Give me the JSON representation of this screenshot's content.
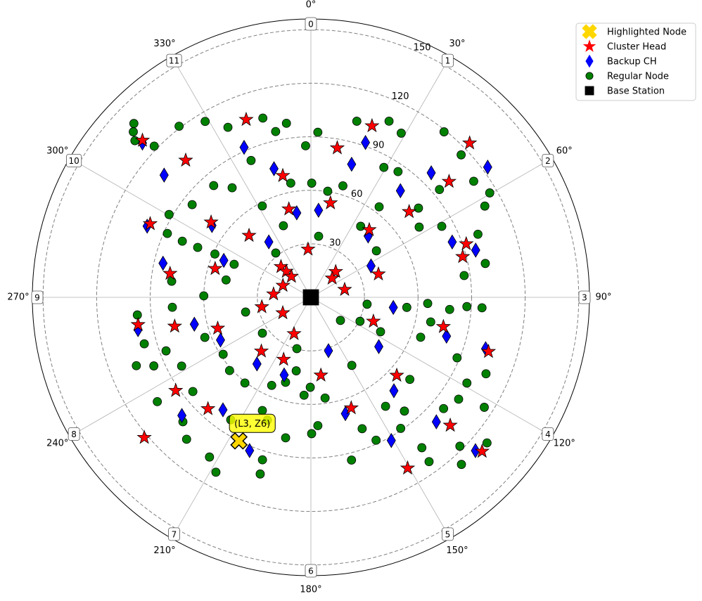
{
  "chart_data": {
    "type": "polar-scatter",
    "theta_direction": "clockwise",
    "theta_zero": "top",
    "rlim": [
      0,
      156
    ],
    "rticks": [
      30,
      60,
      90,
      120,
      150
    ],
    "thetaticks": [
      {
        "value": 0,
        "label": "0°"
      },
      {
        "value": 30,
        "label": "30°"
      },
      {
        "value": 60,
        "label": "60°"
      },
      {
        "value": 90,
        "label": "90°"
      },
      {
        "value": 120,
        "label": "120°"
      },
      {
        "value": 150,
        "label": "150°"
      },
      {
        "value": 180,
        "label": "180°"
      },
      {
        "value": 210,
        "label": "210°"
      },
      {
        "value": 240,
        "label": "240°"
      },
      {
        "value": 270,
        "label": "270°"
      },
      {
        "value": 300,
        "label": "300°"
      },
      {
        "value": 330,
        "label": "330°"
      }
    ],
    "sector_labels": [
      "0",
      "1",
      "2",
      "3",
      "4",
      "5",
      "6",
      "7",
      "8",
      "9",
      "10",
      "11"
    ],
    "grid": true,
    "legend": "upper right",
    "annotation": "(L3, Z6)",
    "series": [
      {
        "name": "Highlighted Node",
        "color": "#ffd700",
        "marker": "X",
        "theta": [
          206.6
        ],
        "r": [
          90
        ]
      },
      {
        "name": "Cluster Head",
        "color": "#ff0000",
        "marker": "*",
        "theta": [
          340,
          19.6,
          10,
          45.8,
          313,
          317.6,
          347,
          50,
          11.7,
          346,
          48.9,
          307,
          294.6,
          40.8,
          315,
          71,
          356.6,
          75,
          286.7,
          315.7,
          316.6,
          44,
          71,
          279.6,
          317,
          48,
          293,
          77,
          275,
          259,
          241,
          111,
          261,
          258,
          251.6,
          102.5,
          204.8,
          222.6,
          107,
          203.7,
          132.3,
          172.7,
          235.4,
          222.7,
          160,
          132.6,
          229.9,
          132,
          150.5
        ],
        "r": [
          106,
          102,
          85,
          124,
          129,
          104,
          70,
          101,
          54,
          51,
          73,
          70,
          99,
          50,
          49,
          92,
          27,
          88,
          56,
          24,
          20,
          20,
          40,
          80,
          16,
          16,
          17,
          19.4,
          21,
          28,
          18,
          37.5,
          98,
          78,
          55,
          76,
          22.5,
          41,
          104,
          38,
          65,
          44,
          92,
          85,
          66,
          106,
          122,
          129,
          110
        ]
      },
      {
        "name": "Backup CH",
        "color": "#0000ff",
        "marker": "d",
        "theta": [
          19.4,
          336,
          312.5,
          53.6,
          17,
          344,
          309.8,
          44,
          40,
          5,
          350.5,
          293.5,
          306,
          43,
          322.8,
          68.6,
          74,
          283,
          293,
          62.4,
          97,
          257,
          259.4,
          106,
          106.4,
          244.7,
          161.8,
          126,
          219,
          199,
          138.4,
          218,
          163.5,
          227.5,
          134.8,
          150.7,
          201.8,
          133
        ],
        "r": [
          92,
          92,
          128,
          123,
          78,
          75,
          107,
          97,
          78,
          49,
          48,
          100,
          68.5,
          47,
          39,
          85,
          96,
          85,
          53,
          38,
          46.5,
          67,
          98.5,
          79,
          102,
          56,
          31.5,
          47,
          48,
          46,
          70,
          80,
          68,
          98,
          99,
          92,
          92.5,
          126
        ]
      },
      {
        "name": "Regular Node",
        "color": "#008000",
        "marker": "o",
        "theta": [
          314.5,
          311.7,
          314,
          322.4,
          329,
          334,
          345,
          352,
          348,
          358,
          2.4,
          14.6,
          23.9,
          28.8,
          38.8,
          46.5,
          54.5,
          59.7,
          62.3,
          69.3,
          79,
          81.9,
          93.5,
          93.4,
          95,
          93,
          96,
          101.6,
          110,
          112.5,
          113.6,
          118.8,
          124.6,
          122.4,
          129.6,
          135,
          138,
          144.3,
          143.6,
          145.6,
          140.6,
          155.5,
          166,
          158.7,
          176.9,
          179.7,
          172,
          184,
          191.3,
          195.3,
          196.6,
          203.2,
          217.6,
          228,
          237,
          249.3,
          249.7,
          246.4,
          242,
          231.4,
          235.8,
          221.2,
          212.4,
          208.5,
          196,
          196.6,
          190.2,
          199.5,
          213.2,
          233.5,
          257.3,
          281.6,
          294.3,
          293.6,
          294,
          300.3,
          308,
          319,
          324.3,
          336.4,
          350,
          332,
          339,
          0.4,
          16,
          29.3,
          37,
          57,
          61.5,
          50,
          35,
          54.6,
          7.2,
          321.6,
          293.3,
          276.6,
          270.8,
          265.9,
          264.2,
          254.4,
          248.6,
          116.3,
          116,
          97,
          129.7,
          149,
          128,
          180.4,
          204,
          293.8,
          50.3,
          34.7,
          9,
          313,
          225.8,
          130,
          145.6
        ],
        "r": [
          139,
          132,
          122,
          121,
          115,
          106,
          104,
          98.5,
          95,
          85,
          92.6,
          102,
          108,
          105,
          119,
          116,
          112,
          116,
          110,
          100,
          99.5,
          86.7,
          96,
          87.5,
          78,
          65.5,
          54,
          68.5,
          65.4,
          88.6,
          107,
          99.7,
          100.5,
          115,
          128,
          118,
          126,
          113.4,
          104.7,
          89,
          82.5,
          88,
          94,
          79,
          72,
          76.4,
          57,
          55,
          42,
          29.8,
          49.7,
          69,
          60.6,
          61.3,
          58.6,
          63.5,
          86.5,
          96,
          82,
          84.6,
          104,
          105.7,
          106,
          111.5,
          103,
          95,
          80,
          73,
          82,
          33.8,
          37.5,
          48.5,
          59,
          78.6,
          88,
          92,
          84.4,
          83,
          75.6,
          83.7,
          65,
          58,
          43,
          64,
          65,
          83.5,
          63.5,
          72.3,
          83.4,
          94,
          48.6,
          45,
          34.5,
          31.7,
          46.8,
          78.5,
          60,
          77.8,
          97.7,
          96.9,
          105,
          43.5,
          30.6,
          31.7,
          72,
          44.5,
          21,
          50.4,
          54,
          69.3,
          78.3,
          85.7,
          60.2,
          136,
          100,
          97,
          74
        ]
      },
      {
        "name": "Base Station",
        "color": "#000000",
        "marker": "s",
        "theta": [
          0
        ],
        "r": [
          0
        ]
      }
    ]
  }
}
